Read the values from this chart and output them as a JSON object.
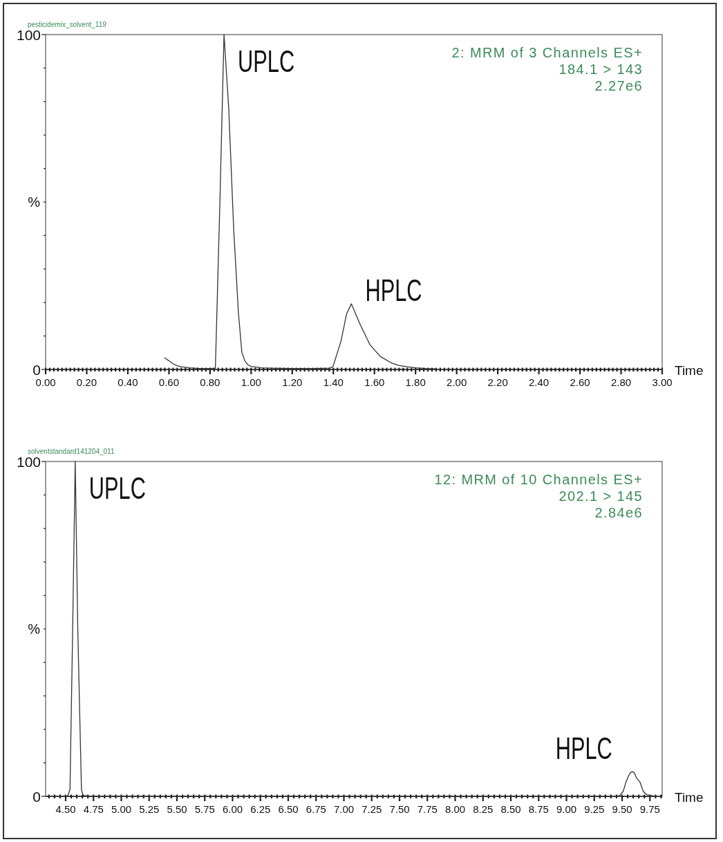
{
  "chart_data": [
    {
      "type": "line",
      "title": "pesticidemix_solvent_119",
      "xlabel": "Time",
      "ylabel": "%",
      "color": "#333333",
      "x": [
        0.58,
        0.6,
        0.62,
        0.64,
        0.66,
        0.7,
        0.75,
        0.8,
        0.826,
        0.848,
        0.868,
        0.891,
        0.915,
        0.938,
        0.955,
        0.97,
        0.984,
        1.0,
        1.05,
        1.1,
        1.2,
        1.3,
        1.38,
        1.398,
        1.437,
        1.465,
        1.488,
        1.527,
        1.578,
        1.628,
        1.684,
        1.718,
        1.76,
        1.8,
        1.85,
        1.9
      ],
      "values": [
        3.4,
        2.6,
        1.7,
        1.1,
        0.8,
        0.5,
        0.3,
        0.3,
        0.4,
        50,
        100,
        78,
        42,
        17,
        5,
        2.5,
        1.4,
        0.9,
        0.5,
        0.4,
        0.3,
        0.3,
        0.4,
        0.8,
        8.4,
        16.7,
        19.6,
        13.9,
        7.4,
        3.9,
        1.9,
        1.2,
        0.8,
        0.5,
        0.3,
        0.2
      ],
      "xlim": [
        0,
        3
      ],
      "xticks": [
        {
          "value": 0,
          "label": "0.00"
        },
        {
          "value": 0.02,
          "label": null
        },
        {
          "value": 0.04,
          "label": null
        },
        {
          "value": 0.06,
          "label": null
        },
        {
          "value": 0.08,
          "label": null
        },
        {
          "value": 0.1,
          "label": null
        },
        {
          "value": 0.12,
          "label": null
        },
        {
          "value": 0.14,
          "label": null
        },
        {
          "value": 0.16,
          "label": null
        },
        {
          "value": 0.18,
          "label": null
        },
        {
          "value": 0.2,
          "label": "0.20"
        },
        {
          "value": 0.22,
          "label": null
        },
        {
          "value": 0.24,
          "label": null
        },
        {
          "value": 0.26,
          "label": null
        },
        {
          "value": 0.28,
          "label": null
        },
        {
          "value": 0.3,
          "label": null
        },
        {
          "value": 0.32,
          "label": null
        },
        {
          "value": 0.34,
          "label": null
        },
        {
          "value": 0.36,
          "label": null
        },
        {
          "value": 0.38,
          "label": null
        },
        {
          "value": 0.4,
          "label": "0.40"
        },
        {
          "value": 0.42,
          "label": null
        },
        {
          "value": 0.44,
          "label": null
        },
        {
          "value": 0.46,
          "label": null
        },
        {
          "value": 0.48,
          "label": null
        },
        {
          "value": 0.5,
          "label": null
        },
        {
          "value": 0.52,
          "label": null
        },
        {
          "value": 0.54,
          "label": null
        },
        {
          "value": 0.56,
          "label": null
        },
        {
          "value": 0.58,
          "label": null
        },
        {
          "value": 0.6,
          "label": "0.60"
        },
        {
          "value": 0.62,
          "label": null
        },
        {
          "value": 0.64,
          "label": null
        },
        {
          "value": 0.66,
          "label": null
        },
        {
          "value": 0.68,
          "label": null
        },
        {
          "value": 0.7,
          "label": null
        },
        {
          "value": 0.72,
          "label": null
        },
        {
          "value": 0.74,
          "label": null
        },
        {
          "value": 0.76,
          "label": null
        },
        {
          "value": 0.78,
          "label": null
        },
        {
          "value": 0.8,
          "label": "0.80"
        },
        {
          "value": 0.82,
          "label": null
        },
        {
          "value": 0.84,
          "label": null
        },
        {
          "value": 0.86,
          "label": null
        },
        {
          "value": 0.88,
          "label": null
        },
        {
          "value": 0.9,
          "label": null
        },
        {
          "value": 0.92,
          "label": null
        },
        {
          "value": 0.94,
          "label": null
        },
        {
          "value": 0.96,
          "label": null
        },
        {
          "value": 0.98,
          "label": null
        },
        {
          "value": 1,
          "label": "1.00"
        },
        {
          "value": 1.02,
          "label": null
        },
        {
          "value": 1.04,
          "label": null
        },
        {
          "value": 1.06,
          "label": null
        },
        {
          "value": 1.08,
          "label": null
        },
        {
          "value": 1.1,
          "label": null
        },
        {
          "value": 1.12,
          "label": null
        },
        {
          "value": 1.14,
          "label": null
        },
        {
          "value": 1.16,
          "label": null
        },
        {
          "value": 1.18,
          "label": null
        },
        {
          "value": 1.2,
          "label": "1.20"
        },
        {
          "value": 1.22,
          "label": null
        },
        {
          "value": 1.24,
          "label": null
        },
        {
          "value": 1.26,
          "label": null
        },
        {
          "value": 1.28,
          "label": null
        },
        {
          "value": 1.3,
          "label": null
        },
        {
          "value": 1.32,
          "label": null
        },
        {
          "value": 1.34,
          "label": null
        },
        {
          "value": 1.36,
          "label": null
        },
        {
          "value": 1.38,
          "label": null
        },
        {
          "value": 1.4,
          "label": "1.40"
        },
        {
          "value": 1.42,
          "label": null
        },
        {
          "value": 1.44,
          "label": null
        },
        {
          "value": 1.46,
          "label": null
        },
        {
          "value": 1.48,
          "label": null
        },
        {
          "value": 1.5,
          "label": null
        },
        {
          "value": 1.52,
          "label": null
        },
        {
          "value": 1.54,
          "label": null
        },
        {
          "value": 1.56,
          "label": null
        },
        {
          "value": 1.58,
          "label": null
        },
        {
          "value": 1.6,
          "label": "1.60"
        },
        {
          "value": 1.62,
          "label": null
        },
        {
          "value": 1.64,
          "label": null
        },
        {
          "value": 1.66,
          "label": null
        },
        {
          "value": 1.68,
          "label": null
        },
        {
          "value": 1.7,
          "label": null
        },
        {
          "value": 1.72,
          "label": null
        },
        {
          "value": 1.74,
          "label": null
        },
        {
          "value": 1.76,
          "label": null
        },
        {
          "value": 1.78,
          "label": null
        },
        {
          "value": 1.8,
          "label": "1.80"
        },
        {
          "value": 1.82,
          "label": null
        },
        {
          "value": 1.84,
          "label": null
        },
        {
          "value": 1.86,
          "label": null
        },
        {
          "value": 1.88,
          "label": null
        },
        {
          "value": 1.9,
          "label": null
        },
        {
          "value": 1.92,
          "label": null
        },
        {
          "value": 1.94,
          "label": null
        },
        {
          "value": 1.96,
          "label": null
        },
        {
          "value": 1.98,
          "label": null
        },
        {
          "value": 2,
          "label": "2.00"
        },
        {
          "value": 2.02,
          "label": null
        },
        {
          "value": 2.04,
          "label": null
        },
        {
          "value": 2.06,
          "label": null
        },
        {
          "value": 2.08,
          "label": null
        },
        {
          "value": 2.1,
          "label": null
        },
        {
          "value": 2.12,
          "label": null
        },
        {
          "value": 2.14,
          "label": null
        },
        {
          "value": 2.16,
          "label": null
        },
        {
          "value": 2.18,
          "label": null
        },
        {
          "value": 2.2,
          "label": "2.20"
        },
        {
          "value": 2.22,
          "label": null
        },
        {
          "value": 2.24,
          "label": null
        },
        {
          "value": 2.26,
          "label": null
        },
        {
          "value": 2.28,
          "label": null
        },
        {
          "value": 2.3,
          "label": null
        },
        {
          "value": 2.32,
          "label": null
        },
        {
          "value": 2.34,
          "label": null
        },
        {
          "value": 2.36,
          "label": null
        },
        {
          "value": 2.38,
          "label": null
        },
        {
          "value": 2.4,
          "label": "2.40"
        },
        {
          "value": 2.42,
          "label": null
        },
        {
          "value": 2.44,
          "label": null
        },
        {
          "value": 2.46,
          "label": null
        },
        {
          "value": 2.48,
          "label": null
        },
        {
          "value": 2.5,
          "label": null
        },
        {
          "value": 2.52,
          "label": null
        },
        {
          "value": 2.54,
          "label": null
        },
        {
          "value": 2.56,
          "label": null
        },
        {
          "value": 2.58,
          "label": null
        },
        {
          "value": 2.6,
          "label": "2.60"
        },
        {
          "value": 2.62,
          "label": null
        },
        {
          "value": 2.64,
          "label": null
        },
        {
          "value": 2.66,
          "label": null
        },
        {
          "value": 2.68,
          "label": null
        },
        {
          "value": 2.7,
          "label": null
        },
        {
          "value": 2.72,
          "label": null
        },
        {
          "value": 2.74,
          "label": null
        },
        {
          "value": 2.76,
          "label": null
        },
        {
          "value": 2.78,
          "label": null
        },
        {
          "value": 2.8,
          "label": "2.80"
        },
        {
          "value": 2.82,
          "label": null
        },
        {
          "value": 2.84,
          "label": null
        },
        {
          "value": 2.86,
          "label": null
        },
        {
          "value": 2.88,
          "label": null
        },
        {
          "value": 2.9,
          "label": null
        },
        {
          "value": 2.92,
          "label": null
        },
        {
          "value": 2.94,
          "label": null
        },
        {
          "value": 2.96,
          "label": null
        },
        {
          "value": 2.98,
          "label": null
        },
        {
          "value": 3,
          "label": "3.00"
        }
      ],
      "ylim": [
        0,
        100
      ],
      "yticks": [
        {
          "value": 0,
          "label": "0"
        },
        {
          "value": 10,
          "label": null
        },
        {
          "value": 20,
          "label": null
        },
        {
          "value": 30,
          "label": null
        },
        {
          "value": 40,
          "label": null
        },
        {
          "value": 50,
          "label": null
        },
        {
          "value": 60,
          "label": null
        },
        {
          "value": 70,
          "label": null
        },
        {
          "value": 80,
          "label": null
        },
        {
          "value": 90,
          "label": null
        },
        {
          "value": 100,
          "label": "100"
        }
      ],
      "annotations": [
        {
          "text": "UPLC",
          "x": 0.868,
          "y": 100
        },
        {
          "text": "HPLC",
          "x": 1.488,
          "y": 19.6
        },
        "2: MRM of 3 Channels ES+",
        "184.1 > 143",
        "2.27e6"
      ]
    },
    {
      "type": "line",
      "title": "solventstandard141204_011",
      "xlabel": "Time",
      "ylabel": "%",
      "color": "#333333",
      "x": [
        4.45,
        4.5,
        4.52,
        4.539,
        4.563,
        4.586,
        4.609,
        4.642,
        4.657,
        4.7,
        5,
        6,
        7,
        8,
        9,
        9.45,
        9.48,
        9.51,
        9.535,
        9.556,
        9.575,
        9.593,
        9.61,
        9.629,
        9.66,
        9.69,
        9.72,
        9.77,
        9.8
      ],
      "values": [
        0,
        0,
        0.2,
        2,
        50,
        100,
        50,
        2,
        0.3,
        0.1,
        0,
        0,
        0,
        0,
        0,
        0,
        0.3,
        1.5,
        4.3,
        6,
        7.1,
        7.4,
        7,
        5.5,
        4.3,
        1.5,
        0.5,
        0.2,
        0
      ],
      "xlim": [
        4.32,
        9.86
      ],
      "xticks": [
        {
          "value": 4.35,
          "label": null
        },
        {
          "value": 4.4,
          "label": null
        },
        {
          "value": 4.45,
          "label": null
        },
        {
          "value": 4.5,
          "label": "4.50"
        },
        {
          "value": 4.55,
          "label": null
        },
        {
          "value": 4.6,
          "label": null
        },
        {
          "value": 4.65,
          "label": null
        },
        {
          "value": 4.7,
          "label": null
        },
        {
          "value": 4.75,
          "label": "4.75"
        },
        {
          "value": 4.8,
          "label": null
        },
        {
          "value": 4.85,
          "label": null
        },
        {
          "value": 4.9,
          "label": null
        },
        {
          "value": 4.95,
          "label": null
        },
        {
          "value": 5,
          "label": "5.00"
        },
        {
          "value": 5.05,
          "label": null
        },
        {
          "value": 5.1,
          "label": null
        },
        {
          "value": 5.15,
          "label": null
        },
        {
          "value": 5.2,
          "label": null
        },
        {
          "value": 5.25,
          "label": "5.25"
        },
        {
          "value": 5.3,
          "label": null
        },
        {
          "value": 5.35,
          "label": null
        },
        {
          "value": 5.4,
          "label": null
        },
        {
          "value": 5.45,
          "label": null
        },
        {
          "value": 5.5,
          "label": "5.50"
        },
        {
          "value": 5.55,
          "label": null
        },
        {
          "value": 5.6,
          "label": null
        },
        {
          "value": 5.65,
          "label": null
        },
        {
          "value": 5.7,
          "label": null
        },
        {
          "value": 5.75,
          "label": "5.75"
        },
        {
          "value": 5.8,
          "label": null
        },
        {
          "value": 5.85,
          "label": null
        },
        {
          "value": 5.9,
          "label": null
        },
        {
          "value": 5.95,
          "label": null
        },
        {
          "value": 6,
          "label": "6.00"
        },
        {
          "value": 6.05,
          "label": null
        },
        {
          "value": 6.1,
          "label": null
        },
        {
          "value": 6.15,
          "label": null
        },
        {
          "value": 6.2,
          "label": null
        },
        {
          "value": 6.25,
          "label": "6.25"
        },
        {
          "value": 6.3,
          "label": null
        },
        {
          "value": 6.35,
          "label": null
        },
        {
          "value": 6.4,
          "label": null
        },
        {
          "value": 6.45,
          "label": null
        },
        {
          "value": 6.5,
          "label": "6.50"
        },
        {
          "value": 6.55,
          "label": null
        },
        {
          "value": 6.6,
          "label": null
        },
        {
          "value": 6.65,
          "label": null
        },
        {
          "value": 6.7,
          "label": null
        },
        {
          "value": 6.75,
          "label": "6.75"
        },
        {
          "value": 6.8,
          "label": null
        },
        {
          "value": 6.85,
          "label": null
        },
        {
          "value": 6.9,
          "label": null
        },
        {
          "value": 6.95,
          "label": null
        },
        {
          "value": 7,
          "label": "7.00"
        },
        {
          "value": 7.05,
          "label": null
        },
        {
          "value": 7.1,
          "label": null
        },
        {
          "value": 7.15,
          "label": null
        },
        {
          "value": 7.2,
          "label": null
        },
        {
          "value": 7.25,
          "label": "7.25"
        },
        {
          "value": 7.3,
          "label": null
        },
        {
          "value": 7.35,
          "label": null
        },
        {
          "value": 7.4,
          "label": null
        },
        {
          "value": 7.45,
          "label": null
        },
        {
          "value": 7.5,
          "label": "7.50"
        },
        {
          "value": 7.55,
          "label": null
        },
        {
          "value": 7.6,
          "label": null
        },
        {
          "value": 7.65,
          "label": null
        },
        {
          "value": 7.7,
          "label": null
        },
        {
          "value": 7.75,
          "label": "7.75"
        },
        {
          "value": 7.8,
          "label": null
        },
        {
          "value": 7.85,
          "label": null
        },
        {
          "value": 7.9,
          "label": null
        },
        {
          "value": 7.95,
          "label": null
        },
        {
          "value": 8,
          "label": "8.00"
        },
        {
          "value": 8.05,
          "label": null
        },
        {
          "value": 8.1,
          "label": null
        },
        {
          "value": 8.15,
          "label": null
        },
        {
          "value": 8.2,
          "label": null
        },
        {
          "value": 8.25,
          "label": "8.25"
        },
        {
          "value": 8.3,
          "label": null
        },
        {
          "value": 8.35,
          "label": null
        },
        {
          "value": 8.4,
          "label": null
        },
        {
          "value": 8.45,
          "label": null
        },
        {
          "value": 8.5,
          "label": "8.50"
        },
        {
          "value": 8.55,
          "label": null
        },
        {
          "value": 8.6,
          "label": null
        },
        {
          "value": 8.65,
          "label": null
        },
        {
          "value": 8.7,
          "label": null
        },
        {
          "value": 8.75,
          "label": "8.75"
        },
        {
          "value": 8.8,
          "label": null
        },
        {
          "value": 8.85,
          "label": null
        },
        {
          "value": 8.9,
          "label": null
        },
        {
          "value": 8.95,
          "label": null
        },
        {
          "value": 9,
          "label": "9.00"
        },
        {
          "value": 9.05,
          "label": null
        },
        {
          "value": 9.1,
          "label": null
        },
        {
          "value": 9.15,
          "label": null
        },
        {
          "value": 9.2,
          "label": null
        },
        {
          "value": 9.25,
          "label": "9.25"
        },
        {
          "value": 9.3,
          "label": null
        },
        {
          "value": 9.35,
          "label": null
        },
        {
          "value": 9.4,
          "label": null
        },
        {
          "value": 9.45,
          "label": null
        },
        {
          "value": 9.5,
          "label": "9.50"
        },
        {
          "value": 9.55,
          "label": null
        },
        {
          "value": 9.6,
          "label": null
        },
        {
          "value": 9.65,
          "label": null
        },
        {
          "value": 9.7,
          "label": null
        },
        {
          "value": 9.75,
          "label": "9.75"
        },
        {
          "value": 9.8,
          "label": null
        },
        {
          "value": 9.85,
          "label": null
        }
      ],
      "ylim": [
        0,
        100
      ],
      "yticks": [
        {
          "value": 0,
          "label": "0"
        },
        {
          "value": 10,
          "label": null
        },
        {
          "value": 20,
          "label": null
        },
        {
          "value": 30,
          "label": null
        },
        {
          "value": 40,
          "label": null
        },
        {
          "value": 50,
          "label": null
        },
        {
          "value": 60,
          "label": null
        },
        {
          "value": 70,
          "label": null
        },
        {
          "value": 80,
          "label": null
        },
        {
          "value": 90,
          "label": null
        },
        {
          "value": 100,
          "label": "100"
        }
      ],
      "annotations": [
        {
          "text": "UPLC",
          "x": 4.586,
          "y": 100
        },
        {
          "text": "HPLC",
          "x": 9.593,
          "y": 7.4
        },
        "12: MRM of 10 Channels ES+",
        "202.1 > 145",
        "2.84e6"
      ]
    }
  ]
}
